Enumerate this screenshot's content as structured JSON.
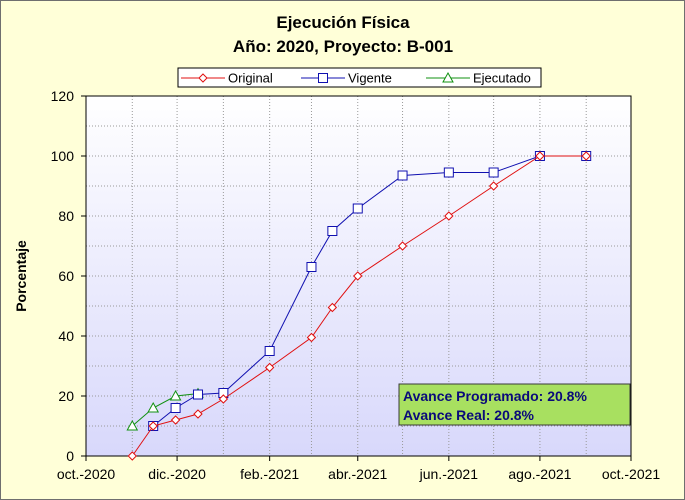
{
  "chart_data": {
    "type": "line",
    "title": "Ejecución Física",
    "subtitle": "Año: 2020, Proyecto: B-001",
    "ylabel": "Porcentaje",
    "xlabel": "",
    "ylim": [
      0,
      120
    ],
    "yticks": [
      0,
      20,
      40,
      60,
      80,
      100,
      120
    ],
    "xlim": [
      "2020-10-01",
      "2021-10-01"
    ],
    "xticks": [
      {
        "date": "2020-10-01",
        "label": "oct.-2020"
      },
      {
        "date": "2020-12-01",
        "label": "dic.-2020"
      },
      {
        "date": "2021-02-01",
        "label": "feb.-2021"
      },
      {
        "date": "2021-04-01",
        "label": "abr.-2021"
      },
      {
        "date": "2021-06-01",
        "label": "jun.-2021"
      },
      {
        "date": "2021-08-01",
        "label": "ago.-2021"
      },
      {
        "date": "2021-10-01",
        "label": "oct.-2021"
      }
    ],
    "grid": true,
    "legend_position": "top",
    "series": [
      {
        "name": "Original",
        "color": "#e01010",
        "marker": "diamond",
        "points": [
          {
            "x": "2020-11-01",
            "y": 0
          },
          {
            "x": "2020-11-15",
            "y": 10
          },
          {
            "x": "2020-11-30",
            "y": 12
          },
          {
            "x": "2020-12-15",
            "y": 14
          },
          {
            "x": "2021-01-01",
            "y": 19
          },
          {
            "x": "2021-02-01",
            "y": 29.5
          },
          {
            "x": "2021-03-01",
            "y": 39.5
          },
          {
            "x": "2021-03-15",
            "y": 49.5
          },
          {
            "x": "2021-04-01",
            "y": 60
          },
          {
            "x": "2021-05-01",
            "y": 70
          },
          {
            "x": "2021-06-01",
            "y": 80
          },
          {
            "x": "2021-07-01",
            "y": 90
          },
          {
            "x": "2021-08-01",
            "y": 100
          },
          {
            "x": "2021-09-01",
            "y": 100
          }
        ]
      },
      {
        "name": "Vigente",
        "color": "#1010b0",
        "marker": "square",
        "points": [
          {
            "x": "2020-11-15",
            "y": 10
          },
          {
            "x": "2020-11-30",
            "y": 16
          },
          {
            "x": "2020-12-15",
            "y": 20.5
          },
          {
            "x": "2021-01-01",
            "y": 21
          },
          {
            "x": "2021-02-01",
            "y": 35
          },
          {
            "x": "2021-03-01",
            "y": 63
          },
          {
            "x": "2021-03-15",
            "y": 75
          },
          {
            "x": "2021-04-01",
            "y": 82.5
          },
          {
            "x": "2021-05-01",
            "y": 93.5
          },
          {
            "x": "2021-06-01",
            "y": 94.5
          },
          {
            "x": "2021-07-01",
            "y": 94.5
          },
          {
            "x": "2021-08-01",
            "y": 100
          },
          {
            "x": "2021-09-01",
            "y": 100
          }
        ]
      },
      {
        "name": "Ejecutado",
        "color": "#109010",
        "marker": "triangle",
        "points": [
          {
            "x": "2020-11-01",
            "y": 10
          },
          {
            "x": "2020-11-15",
            "y": 16
          },
          {
            "x": "2020-11-30",
            "y": 20
          },
          {
            "x": "2020-12-15",
            "y": 20.8
          }
        ]
      }
    ],
    "annotations": [
      "Avance Programado: 20.8%",
      "Avance Real: 20.8%"
    ],
    "colors": {
      "background": "#ffffd8",
      "plot_top": "#ffffff",
      "plot_bottom": "#d8d8fb",
      "info_box": "#a8e060",
      "info_text": "#0a0a7a"
    }
  }
}
